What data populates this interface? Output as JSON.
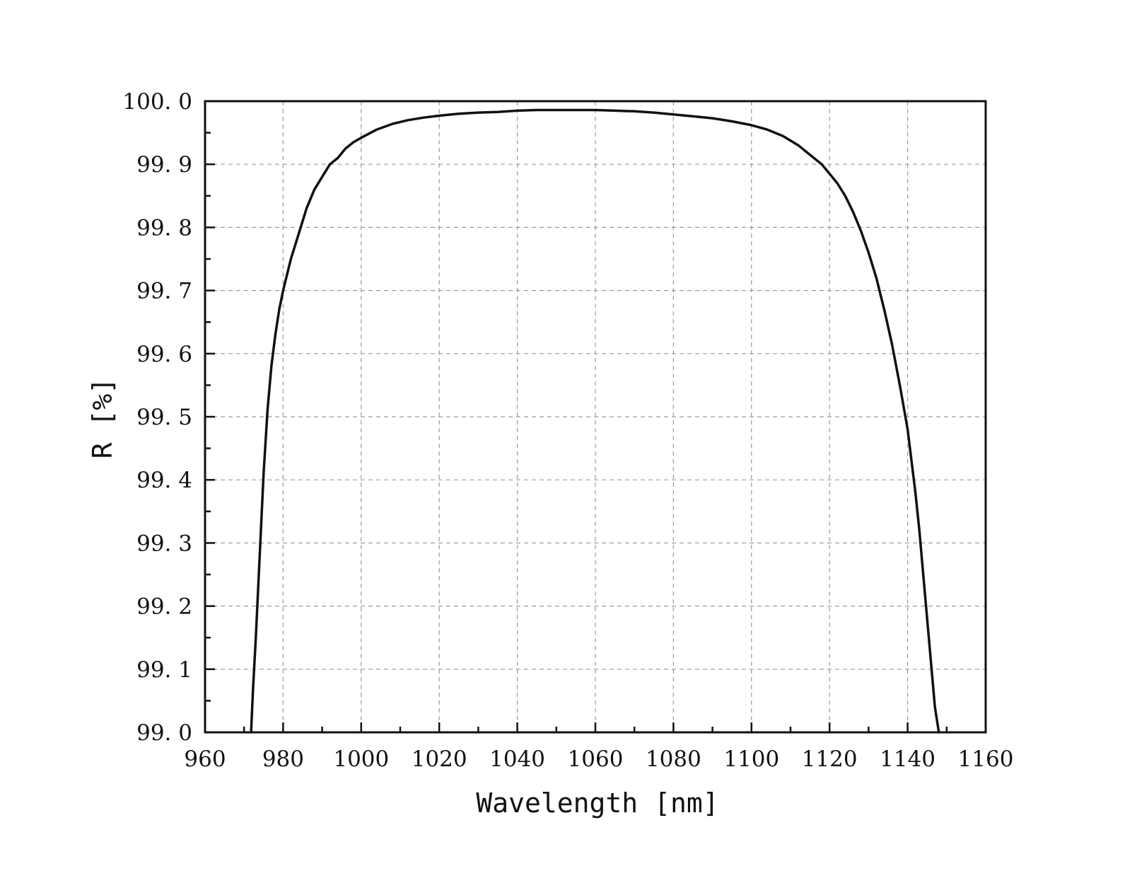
{
  "chart_data": {
    "type": "line",
    "title": "",
    "xlabel": "Wavelength [nm]",
    "ylabel": "R [%]",
    "xlim": [
      960,
      1160
    ],
    "ylim": [
      99.0,
      100.0
    ],
    "x_ticks": [
      960,
      980,
      1000,
      1020,
      1040,
      1060,
      1080,
      1100,
      1120,
      1140,
      1160
    ],
    "y_ticks": [
      99.0,
      99.1,
      99.2,
      99.3,
      99.4,
      99.5,
      99.6,
      99.7,
      99.8,
      99.9,
      100.0
    ],
    "x_tick_labels": [
      "960",
      "980",
      "1000",
      "1020",
      "1040",
      "1060",
      "1080",
      "1100",
      "1120",
      "1140",
      "1160"
    ],
    "y_tick_labels": [
      "99. 0",
      "99. 1",
      "99. 2",
      "99. 3",
      "99. 4",
      "99. 5",
      "99. 6",
      "99. 7",
      "99. 8",
      "99. 9",
      "100. 0"
    ],
    "grid": true,
    "legend": "none",
    "series": [
      {
        "color": "#111111",
        "x": [
          971.8,
          972.3,
          973,
          974,
          975,
          976,
          977,
          978,
          979,
          980,
          982,
          984,
          986,
          988,
          990,
          992,
          994,
          996,
          998,
          1000,
          1004,
          1008,
          1012,
          1016,
          1020,
          1025,
          1030,
          1035,
          1040,
          1045,
          1050,
          1055,
          1060,
          1065,
          1070,
          1075,
          1080,
          1085,
          1090,
          1095,
          1100,
          1104,
          1108,
          1112,
          1116,
          1118,
          1120,
          1122,
          1124,
          1126,
          1128,
          1130,
          1132,
          1134,
          1136,
          1138,
          1140,
          1141,
          1142,
          1143,
          1144,
          1145,
          1146,
          1147,
          1147.5,
          1148
        ],
        "values": [
          99.0,
          99.07,
          99.15,
          99.28,
          99.41,
          99.51,
          99.58,
          99.63,
          99.67,
          99.7,
          99.75,
          99.79,
          99.83,
          99.86,
          99.88,
          99.9,
          99.91,
          99.925,
          99.935,
          99.942,
          99.955,
          99.964,
          99.97,
          99.974,
          99.977,
          99.98,
          99.982,
          99.983,
          99.985,
          99.986,
          99.986,
          99.986,
          99.986,
          99.985,
          99.984,
          99.982,
          99.979,
          99.976,
          99.973,
          99.968,
          99.962,
          99.955,
          99.945,
          99.93,
          99.91,
          99.9,
          99.885,
          99.87,
          99.85,
          99.825,
          99.795,
          99.76,
          99.72,
          99.67,
          99.615,
          99.55,
          99.48,
          99.43,
          99.38,
          99.32,
          99.25,
          99.18,
          99.11,
          99.04,
          99.02,
          99.0
        ]
      }
    ]
  }
}
